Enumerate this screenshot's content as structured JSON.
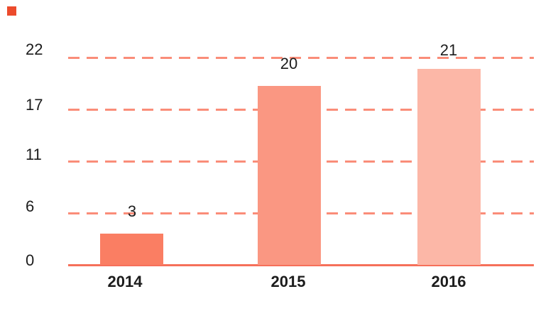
{
  "chart_data": {
    "type": "bar",
    "title": "",
    "categories": [
      "2014",
      "2015",
      "2016"
    ],
    "values": [
      3,
      20,
      21
    ],
    "value_labels": [
      "3",
      "20",
      "21"
    ],
    "ytick_labels": [
      "22",
      "17",
      "11",
      "6",
      "0"
    ],
    "yticks": [
      22,
      17,
      11,
      6,
      0
    ],
    "ylim": [
      0,
      22
    ],
    "xlabel": "",
    "ylabel": "",
    "grid": "horizontal-dashed",
    "legend_position": "none",
    "bar_colors": [
      "#fa7e63",
      "#fa9782",
      "#fcb7a7"
    ],
    "gridline_color": "#fa8d79",
    "axis_line_color": "#f6705a",
    "text_color": "#1c1c1c",
    "background_color": "#ffffff",
    "brand_mark_color": "#ec4b2c"
  }
}
